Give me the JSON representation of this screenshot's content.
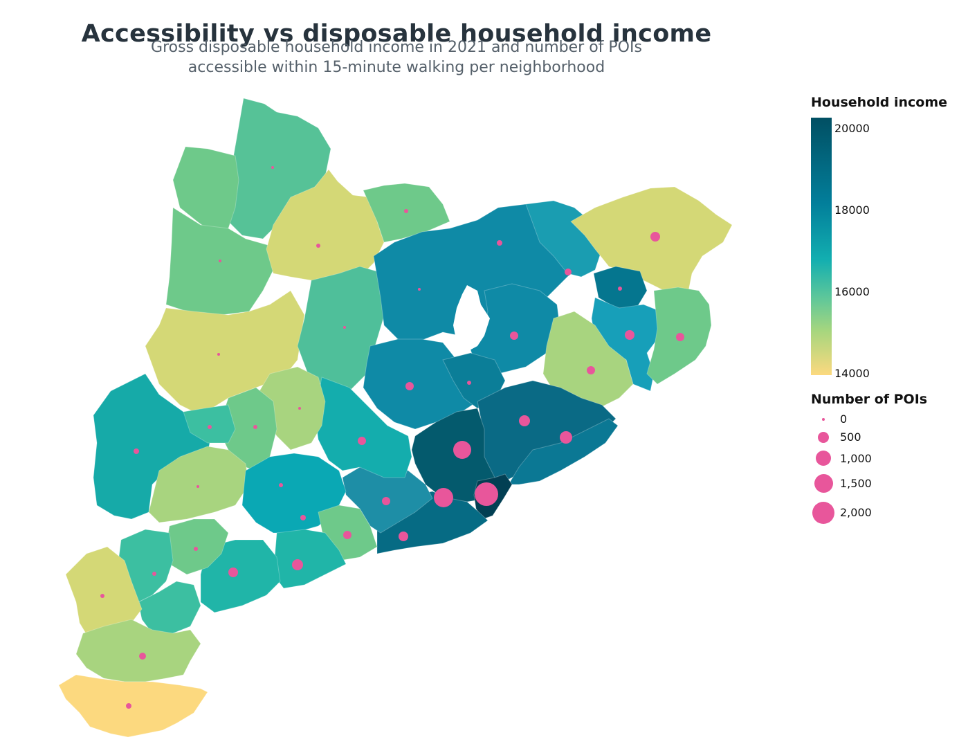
{
  "header": {
    "title": "Accessibility vs disposable household income",
    "subtitle_line1": "Gross disposable household income in 2021 and number of POIs",
    "subtitle_line2": "accessible within 15-minute walking per neighborhood"
  },
  "legend": {
    "income_title": "Household income",
    "income_ticks": [
      "20000",
      "18000",
      "16000",
      "14000"
    ],
    "poi_title": "Number of POIs",
    "poi_items": [
      "0",
      "500",
      "1,000",
      "1,500",
      "2,000"
    ]
  },
  "colors": {
    "income_low": "#fcd97f",
    "income_mid": "#12aeb0",
    "income_high": "#014f63",
    "poi_marker": "#e8569b"
  }
}
